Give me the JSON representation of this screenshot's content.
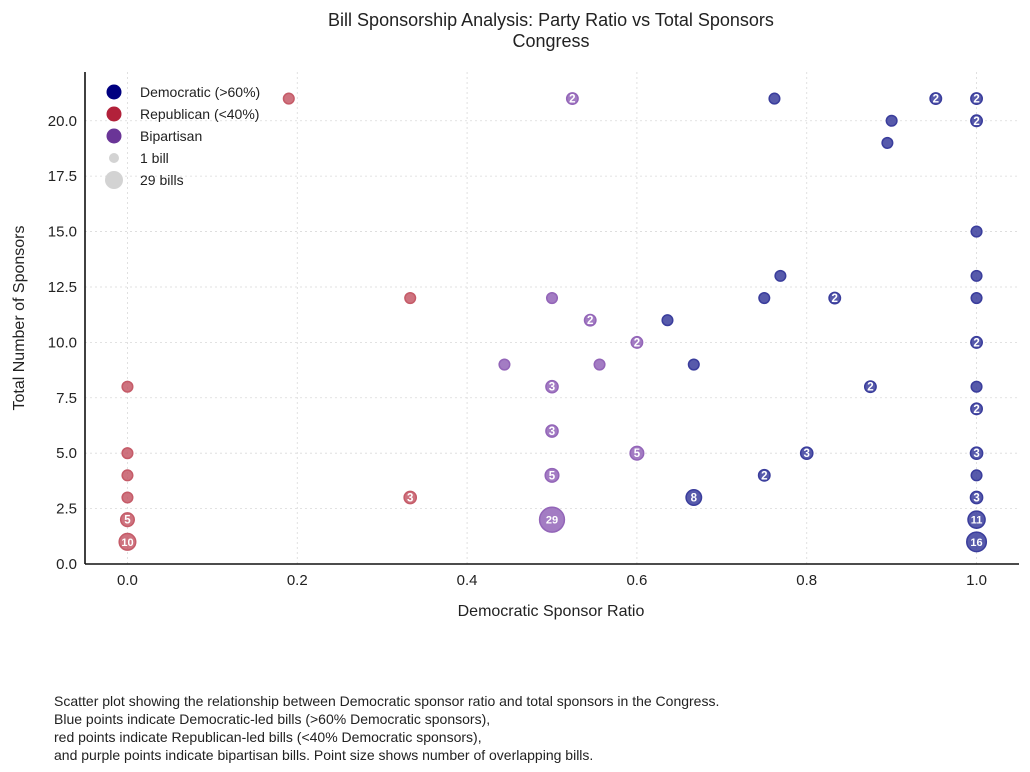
{
  "chart_data": {
    "type": "scatter",
    "title": "Bill Sponsorship Analysis: Party Ratio vs Total Sponsors",
    "subtitle": "Congress",
    "xlabel": "Democratic Sponsor Ratio",
    "ylabel": "Total Number of Sponsors",
    "xlim": [
      -0.05,
      1.05
    ],
    "ylim": [
      0,
      22.2
    ],
    "xticks": [
      0.0,
      0.2,
      0.4,
      0.6,
      0.8,
      1.0
    ],
    "xtick_labels": [
      "0.0",
      "0.2",
      "0.4",
      "0.6",
      "0.8",
      "1.0"
    ],
    "yticks": [
      0.0,
      2.5,
      5.0,
      7.5,
      10.0,
      12.5,
      15.0,
      17.5,
      20.0
    ],
    "ytick_labels": [
      "0.0",
      "2.5",
      "5.0",
      "7.5",
      "10.0",
      "12.5",
      "15.0",
      "17.5",
      "20.0"
    ],
    "grid": true,
    "legend_position": "top-left",
    "colors": {
      "dem": "#3a3d9c",
      "rep": "#c55b68",
      "bip": "#9365b8"
    },
    "legend": [
      {
        "label": "Democratic (>60%)",
        "color": "#000080",
        "kind": "color"
      },
      {
        "label": "Republican (<40%)",
        "color": "#b2213a",
        "kind": "color"
      },
      {
        "label": "Bipartisan",
        "color": "#6a3597",
        "kind": "color"
      },
      {
        "label": "1 bill",
        "color": "#d3d3d3",
        "kind": "size",
        "count": 1
      },
      {
        "label": "29 bills",
        "color": "#d3d3d3",
        "kind": "size",
        "count": 29
      }
    ],
    "series": [
      {
        "group": "dem",
        "points": [
          {
            "x": 0.762,
            "y": 21,
            "count": 1
          },
          {
            "x": 0.952,
            "y": 21,
            "count": 2
          },
          {
            "x": 1.0,
            "y": 21,
            "count": 2
          },
          {
            "x": 0.9,
            "y": 20,
            "count": 1
          },
          {
            "x": 1.0,
            "y": 20,
            "count": 2
          },
          {
            "x": 0.895,
            "y": 19,
            "count": 1
          },
          {
            "x": 1.0,
            "y": 15,
            "count": 1
          },
          {
            "x": 0.769,
            "y": 13,
            "count": 1
          },
          {
            "x": 1.0,
            "y": 13,
            "count": 1
          },
          {
            "x": 0.75,
            "y": 12,
            "count": 1
          },
          {
            "x": 0.833,
            "y": 12,
            "count": 2
          },
          {
            "x": 1.0,
            "y": 12,
            "count": 1
          },
          {
            "x": 0.636,
            "y": 11,
            "count": 1
          },
          {
            "x": 1.0,
            "y": 10,
            "count": 2
          },
          {
            "x": 0.667,
            "y": 9,
            "count": 1
          },
          {
            "x": 0.875,
            "y": 8,
            "count": 2
          },
          {
            "x": 1.0,
            "y": 8,
            "count": 1
          },
          {
            "x": 1.0,
            "y": 7,
            "count": 2
          },
          {
            "x": 0.8,
            "y": 5,
            "count": 3
          },
          {
            "x": 1.0,
            "y": 5,
            "count": 3
          },
          {
            "x": 0.75,
            "y": 4,
            "count": 2
          },
          {
            "x": 1.0,
            "y": 4,
            "count": 1
          },
          {
            "x": 0.667,
            "y": 3,
            "count": 8
          },
          {
            "x": 1.0,
            "y": 3,
            "count": 3
          },
          {
            "x": 1.0,
            "y": 2,
            "count": 11
          },
          {
            "x": 1.0,
            "y": 1,
            "count": 16
          }
        ]
      },
      {
        "group": "rep",
        "points": [
          {
            "x": 0.19,
            "y": 21,
            "count": 1
          },
          {
            "x": 0.333,
            "y": 12,
            "count": 1
          },
          {
            "x": 0.0,
            "y": 8,
            "count": 1
          },
          {
            "x": 0.0,
            "y": 5,
            "count": 1
          },
          {
            "x": 0.0,
            "y": 4,
            "count": 1
          },
          {
            "x": 0.0,
            "y": 3,
            "count": 1
          },
          {
            "x": 0.333,
            "y": 3,
            "count": 3
          },
          {
            "x": 0.0,
            "y": 2,
            "count": 5
          },
          {
            "x": 0.0,
            "y": 1,
            "count": 10
          }
        ]
      },
      {
        "group": "bip",
        "points": [
          {
            "x": 0.524,
            "y": 21,
            "count": 2
          },
          {
            "x": 0.5,
            "y": 12,
            "count": 1
          },
          {
            "x": 0.545,
            "y": 11,
            "count": 2
          },
          {
            "x": 0.6,
            "y": 10,
            "count": 2
          },
          {
            "x": 0.444,
            "y": 9,
            "count": 1
          },
          {
            "x": 0.556,
            "y": 9,
            "count": 1
          },
          {
            "x": 0.5,
            "y": 8,
            "count": 3
          },
          {
            "x": 0.5,
            "y": 6,
            "count": 3
          },
          {
            "x": 0.6,
            "y": 5,
            "count": 5
          },
          {
            "x": 0.5,
            "y": 4,
            "count": 5
          },
          {
            "x": 0.5,
            "y": 2,
            "count": 29
          }
        ]
      }
    ]
  },
  "caption": [
    "Scatter plot showing the relationship between Democratic sponsor ratio and total sponsors in the Congress.",
    "Blue points indicate Democratic-led bills (>60% Democratic sponsors),",
    "red points indicate Republican-led bills (<40% Democratic sponsors),",
    "and purple points indicate bipartisan bills. Point size shows number of overlapping bills."
  ]
}
